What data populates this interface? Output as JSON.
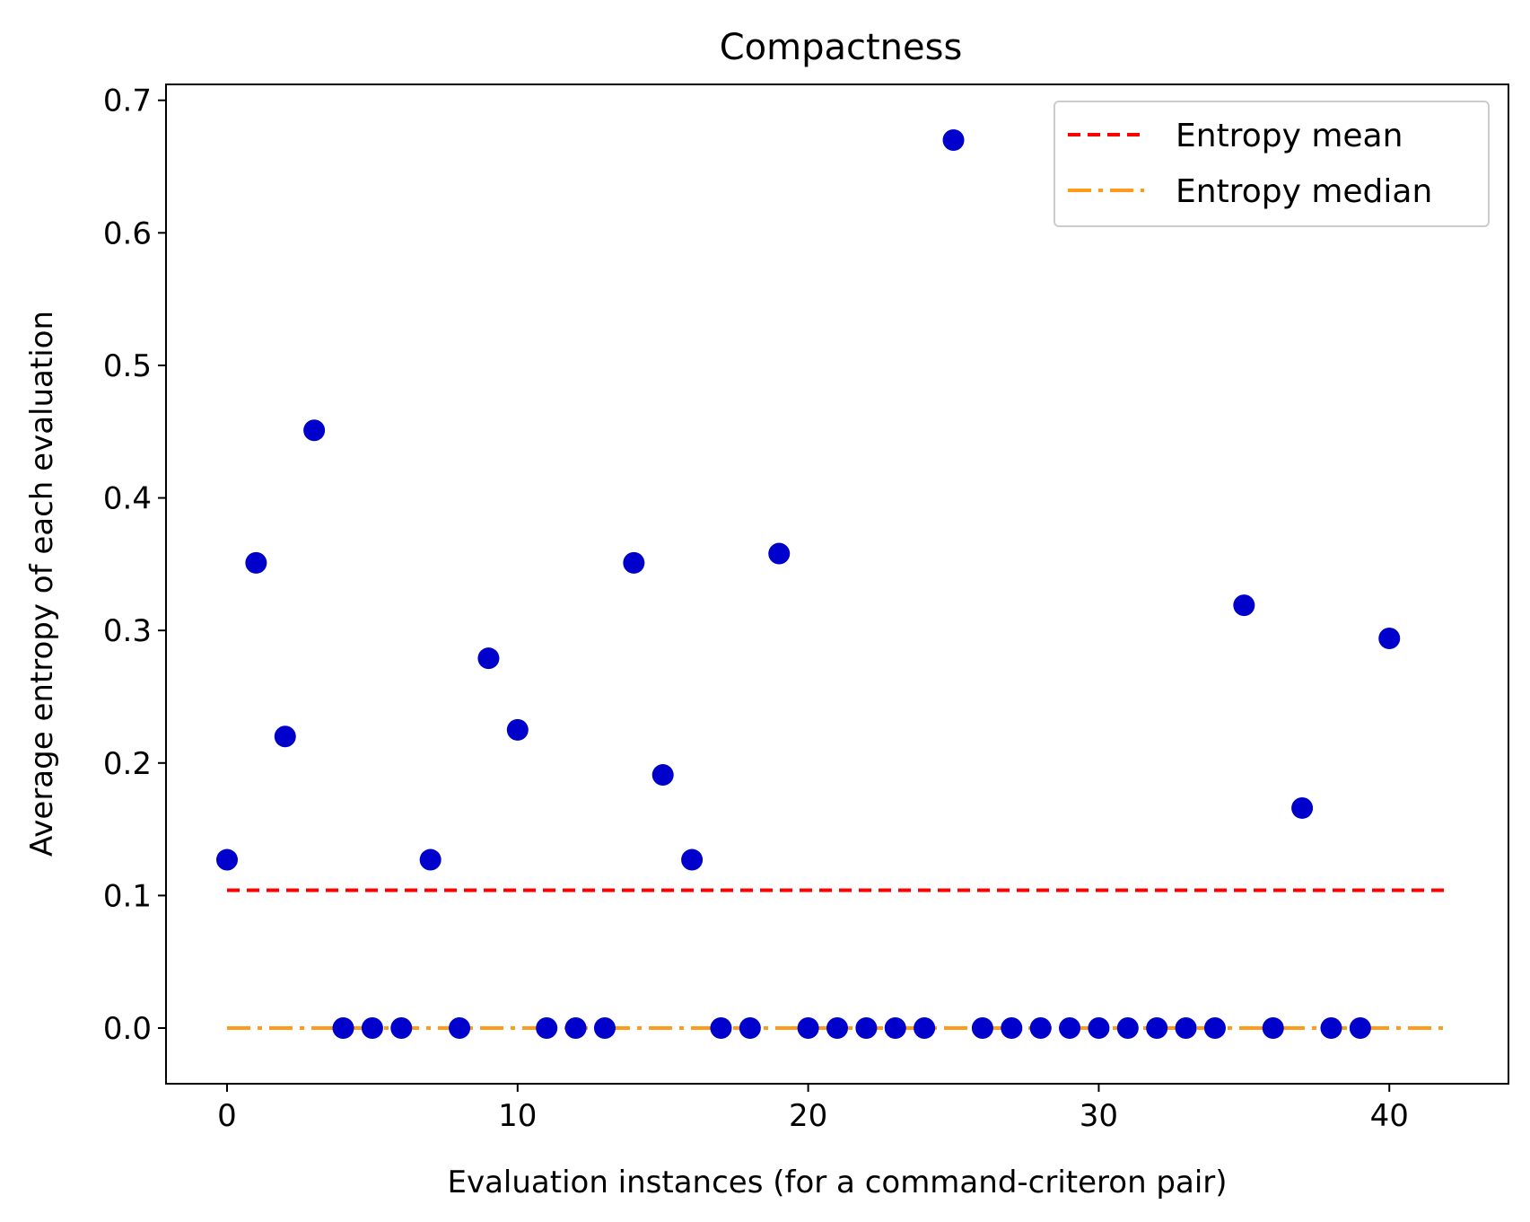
{
  "chart_data": {
    "type": "scatter",
    "title": "Compactness",
    "xlabel": "Evaluation instances (for a command-criteron pair)",
    "ylabel": "Average entropy of each evaluation",
    "xlim": [
      -2.1,
      44.1
    ],
    "ylim": [
      -0.042,
      0.712
    ],
    "xticks": [
      0,
      10,
      20,
      30,
      40
    ],
    "xtick_labels": [
      "0",
      "10",
      "20",
      "30",
      "40"
    ],
    "yticks": [
      0.0,
      0.1,
      0.2,
      0.3,
      0.4,
      0.5,
      0.6,
      0.7
    ],
    "ytick_labels": [
      "0.0",
      "0.1",
      "0.2",
      "0.3",
      "0.4",
      "0.5",
      "0.6",
      "0.7"
    ],
    "grid": false,
    "legend_position": "top-right",
    "series": [
      {
        "kind": "points",
        "color": "#0000cc",
        "x": [
          0,
          1,
          2,
          3,
          4,
          5,
          6,
          7,
          8,
          9,
          10,
          11,
          12,
          13,
          14,
          15,
          16,
          17,
          18,
          19,
          20,
          21,
          22,
          23,
          24,
          25,
          26,
          27,
          28,
          29,
          30,
          31,
          32,
          33,
          34,
          35,
          36,
          37,
          38,
          39,
          40
        ],
        "y": [
          0.127,
          0.351,
          0.22,
          0.451,
          0.0,
          0.0,
          0.0,
          0.127,
          0.0,
          0.279,
          0.225,
          0.0,
          0.0,
          0.0,
          0.351,
          0.191,
          0.127,
          0.0,
          0.0,
          0.358,
          0.0,
          0.0,
          0.0,
          0.0,
          0.0,
          0.67,
          0.0,
          0.0,
          0.0,
          0.0,
          0.0,
          0.0,
          0.0,
          0.0,
          0.0,
          0.319,
          0.0,
          0.166,
          0.0,
          0.0,
          0.294
        ]
      },
      {
        "kind": "hline",
        "name": "Entropy mean",
        "style": "dashed",
        "color": "#ff0000",
        "y": 0.104,
        "x": [
          0,
          42
        ]
      },
      {
        "kind": "hline",
        "name": "Entropy median",
        "style": "dashdot",
        "color": "#ff9a1a",
        "y": 0.0,
        "x": [
          0,
          42
        ]
      }
    ]
  }
}
